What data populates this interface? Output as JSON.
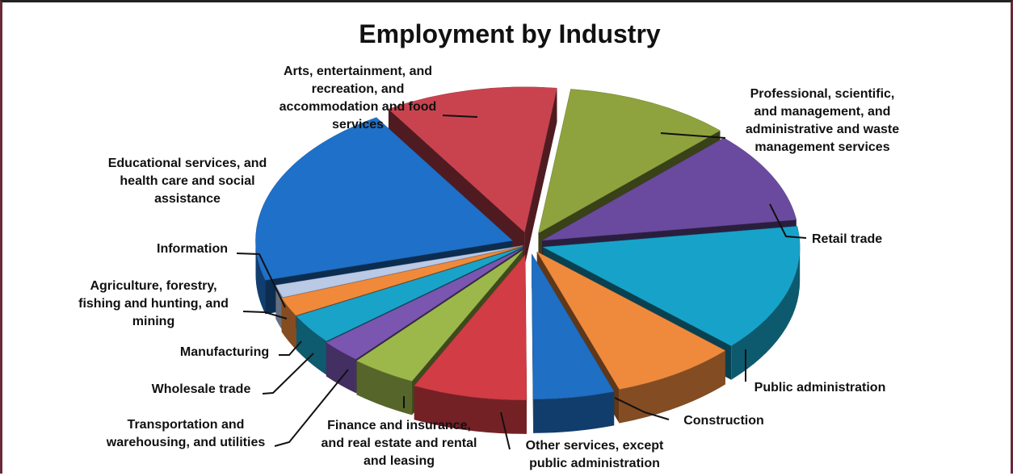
{
  "chart_data": {
    "type": "pie",
    "title": "Employment by Industry",
    "slices": [
      {
        "label": "Arts, entertainment, and recreation, and accommodation and food services",
        "label_lines": [
          "Arts, entertainment, and",
          "recreation, and",
          "accommodation and food",
          "services"
        ],
        "value": 10.9,
        "color": "#c9434f"
      },
      {
        "label": "Professional, scientific, and management, and administrative and waste management services",
        "label_lines": [
          "Professional, scientific,",
          "and management, and",
          "administrative and waste",
          "management services"
        ],
        "value": 10.5,
        "color": "#8ea33d"
      },
      {
        "label": "Retail trade",
        "label_lines": [
          "Retail trade"
        ],
        "value": 10.2,
        "color": "#6a4a9e"
      },
      {
        "label": "Public administration",
        "label_lines": [
          "Public administration"
        ],
        "value": 14.2,
        "color": "#17a3c9"
      },
      {
        "label": "Construction",
        "label_lines": [
          "Construction"
        ],
        "value": 7.9,
        "color": "#ef8a3d"
      },
      {
        "label": "Other services, except public administration",
        "label_lines": [
          "Other services, except",
          "public administration"
        ],
        "value": 5.1,
        "color": "#1f6fc4"
      },
      {
        "label": "Finance and insurance, and real estate and rental and leasing",
        "label_lines": [
          "Finance and insurance,",
          "and real estate and rental",
          "and leasing"
        ],
        "value": 7.2,
        "color": "#d23c44"
      },
      {
        "label": "Transportation and warehousing, and utilities",
        "label_lines": [
          "Transportation and",
          "warehousing, and utilities"
        ],
        "value": 4.1,
        "color": "#9cb84a"
      },
      {
        "label": "Wholesale trade",
        "label_lines": [
          "Wholesale trade"
        ],
        "value": 2.6,
        "color": "#7a56b0"
      },
      {
        "label": "Manufacturing",
        "label_lines": [
          "Manufacturing"
        ],
        "value": 3.3,
        "color": "#1aa3c9"
      },
      {
        "label": "Agriculture, forestry, fishing and hunting, and mining",
        "label_lines": [
          "Agriculture, forestry,",
          "fishing and hunting, and",
          "mining"
        ],
        "value": 2.1,
        "color": "#f08a3a"
      },
      {
        "label": "Information",
        "label_lines": [
          "Information"
        ],
        "value": 1.4,
        "color": "#b9c9e6"
      },
      {
        "label": "Educational services, and health care and social assistance",
        "label_lines": [
          "Educational services, and",
          "health care and social",
          "assistance"
        ],
        "value": 20.5,
        "color": "#1f70c8"
      }
    ]
  }
}
